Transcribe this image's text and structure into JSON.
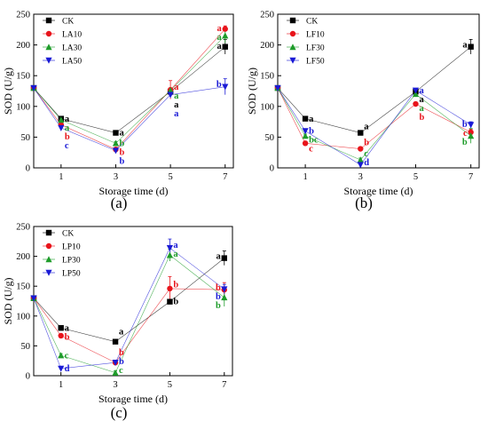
{
  "chart_data": [
    {
      "type": "line",
      "panel_label": "(a)",
      "xlabel": "Storage time (d)",
      "ylabel": "SOD (U/g)",
      "x": [
        0,
        1,
        3,
        5,
        7
      ],
      "xticks": [
        1,
        3,
        5,
        7
      ],
      "xlim": [
        0,
        7.3
      ],
      "ylim": [
        0,
        250
      ],
      "yticks": [
        0,
        50,
        100,
        150,
        200,
        250
      ],
      "legend_position": "top-left",
      "series": [
        {
          "name": "CK",
          "color": "#000000",
          "marker": "square",
          "values": [
            130,
            80,
            57,
            124,
            197
          ],
          "errors": [
            0,
            3,
            3,
            4,
            12
          ],
          "letters": [
            "",
            "a",
            "a",
            "a",
            "a"
          ]
        },
        {
          "name": "LA10",
          "color": "#e8141b",
          "marker": "circle",
          "values": [
            130,
            70,
            30,
            127,
            226
          ],
          "errors": [
            0,
            3,
            3,
            15,
            5
          ],
          "letters": [
            "",
            "b",
            "b",
            "a",
            "a"
          ]
        },
        {
          "name": "LA30",
          "color": "#1e9c2a",
          "marker": "triangle-up",
          "values": [
            130,
            78,
            40,
            126,
            215
          ],
          "errors": [
            0,
            3,
            3,
            4,
            12
          ],
          "letters": [
            "",
            "a",
            "b",
            "a",
            "a"
          ]
        },
        {
          "name": "LA50",
          "color": "#1a1ad6",
          "marker": "triangle-down",
          "values": [
            130,
            65,
            28,
            119,
            132
          ],
          "errors": [
            0,
            3,
            3,
            3,
            13
          ],
          "letters": [
            "",
            "c",
            "b",
            "a",
            "b"
          ]
        }
      ]
    },
    {
      "type": "line",
      "panel_label": "(b)",
      "xlabel": "Storage time (d)",
      "ylabel": "SOD (U/g)",
      "x": [
        0,
        1,
        3,
        5,
        7
      ],
      "xticks": [
        1,
        3,
        5,
        7
      ],
      "xlim": [
        0,
        7.3
      ],
      "ylim": [
        0,
        250
      ],
      "yticks": [
        0,
        50,
        100,
        150,
        200,
        250
      ],
      "legend_position": "top-left",
      "series": [
        {
          "name": "CK",
          "color": "#000000",
          "marker": "square",
          "values": [
            130,
            80,
            57,
            124,
            197
          ],
          "errors": [
            0,
            3,
            3,
            4,
            12
          ],
          "letters": [
            "",
            "a",
            "a",
            "a",
            "a"
          ]
        },
        {
          "name": "LF10",
          "color": "#e8141b",
          "marker": "circle",
          "values": [
            130,
            40,
            31,
            104,
            58
          ],
          "errors": [
            0,
            3,
            3,
            3,
            5
          ],
          "letters": [
            "",
            "c",
            "b",
            "b",
            "c"
          ]
        },
        {
          "name": "LF30",
          "color": "#1e9c2a",
          "marker": "triangle-up",
          "values": [
            130,
            52,
            13,
            120,
            52
          ],
          "errors": [
            0,
            3,
            3,
            3,
            12
          ],
          "letters": [
            "",
            "bc",
            "c",
            "a",
            "b"
          ]
        },
        {
          "name": "LF50",
          "color": "#1a1ad6",
          "marker": "triangle-down",
          "values": [
            130,
            60,
            5,
            126,
            70
          ],
          "errors": [
            0,
            3,
            3,
            3,
            5
          ],
          "letters": [
            "",
            "b",
            "d",
            "a",
            "b"
          ]
        }
      ]
    },
    {
      "type": "line",
      "panel_label": "(c)",
      "xlabel": "Storage time (d)",
      "ylabel": "SOD (U/g)",
      "x": [
        0,
        1,
        3,
        5,
        7
      ],
      "xticks": [
        1,
        3,
        5,
        7
      ],
      "xlim": [
        0,
        7.3
      ],
      "ylim": [
        0,
        250
      ],
      "yticks": [
        0,
        50,
        100,
        150,
        200,
        250
      ],
      "legend_position": "top-left",
      "series": [
        {
          "name": "CK",
          "color": "#000000",
          "marker": "square",
          "values": [
            130,
            80,
            57,
            124,
            197
          ],
          "errors": [
            0,
            3,
            3,
            4,
            12
          ],
          "letters": [
            "",
            "a",
            "a",
            "b",
            "a"
          ]
        },
        {
          "name": "LP10",
          "color": "#e8141b",
          "marker": "circle",
          "values": [
            130,
            67,
            22,
            146,
            144
          ],
          "errors": [
            0,
            3,
            3,
            20,
            12
          ],
          "letters": [
            "",
            "b",
            "b",
            "b",
            "b"
          ]
        },
        {
          "name": "LP30",
          "color": "#1e9c2a",
          "marker": "triangle-up",
          "values": [
            130,
            34,
            5,
            202,
            131
          ],
          "errors": [
            0,
            3,
            3,
            10,
            15
          ],
          "letters": [
            "",
            "c",
            "c",
            "a",
            "b"
          ]
        },
        {
          "name": "LP50",
          "color": "#1a1ad6",
          "marker": "triangle-down",
          "values": [
            130,
            12,
            22,
            214,
            145
          ],
          "errors": [
            0,
            3,
            3,
            15,
            8
          ],
          "letters": [
            "",
            "d",
            "b",
            "a",
            "b"
          ]
        }
      ]
    }
  ]
}
